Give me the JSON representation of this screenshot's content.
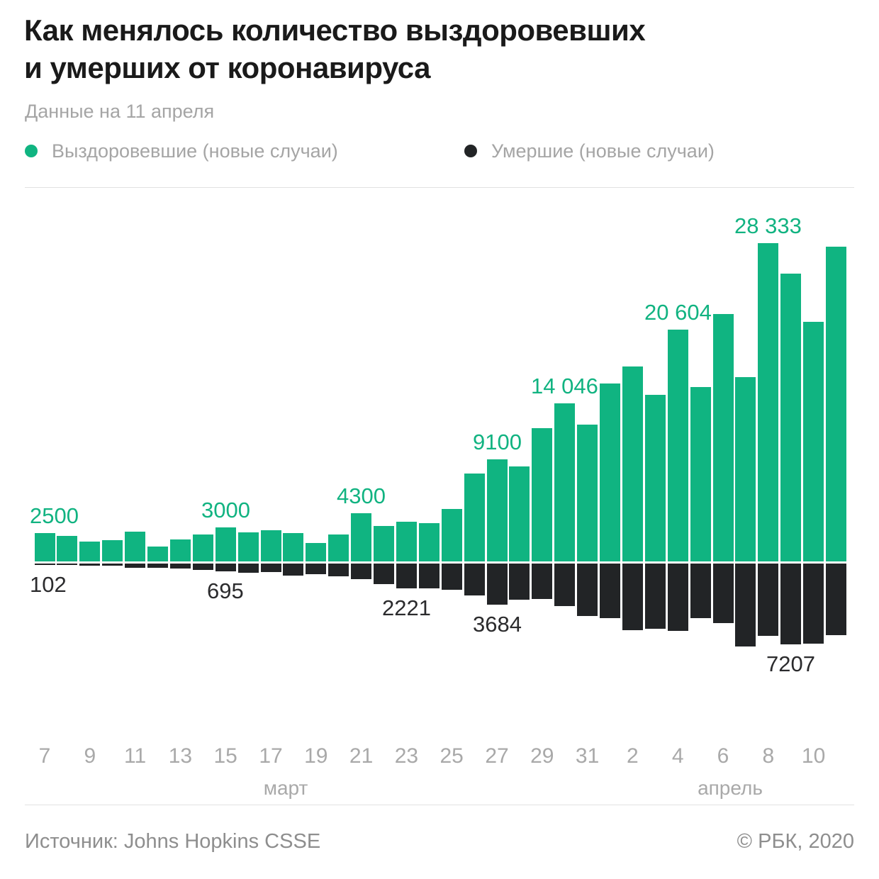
{
  "header": {
    "title_line1": "Как менялось количество выздоровевших",
    "title_line2": "и умерших от коронавируса",
    "subtitle": "Данные на 11 апреля"
  },
  "footer": {
    "source": "Источник: Johns Hopkins CSSE",
    "copyright": "© РБК, 2020"
  },
  "chart_data": {
    "type": "bar",
    "title": "Как менялось количество выздоровевших и умерших от коронавируса",
    "categories": [
      "7 марта",
      "8 марта",
      "9 марта",
      "10 марта",
      "11 марта",
      "12 марта",
      "13 марта",
      "14 марта",
      "15 марта",
      "16 марта",
      "17 марта",
      "18 марта",
      "19 марта",
      "20 марта",
      "21 марта",
      "22 марта",
      "23 марта",
      "24 марта",
      "25 марта",
      "26 марта",
      "27 марта",
      "28 марта",
      "29 марта",
      "30 марта",
      "31 марта",
      "1 апреля",
      "2 апреля",
      "3 апреля",
      "4 апреля",
      "5 апреля",
      "6 апреля",
      "7 апреля",
      "8 апреля",
      "9 апреля",
      "10 апреля",
      "11 апреля"
    ],
    "tick_labels": [
      "7",
      "",
      "9",
      "",
      "11",
      "",
      "13",
      "",
      "15",
      "",
      "17",
      "",
      "19",
      "",
      "21",
      "",
      "23",
      "",
      "25",
      "",
      "27",
      "",
      "29",
      "",
      "31",
      "",
      "2",
      "",
      "4",
      "",
      "6",
      "",
      "8",
      "",
      "10",
      ""
    ],
    "month_labels": [
      "март",
      "апрель"
    ],
    "series": [
      {
        "name": "Выздоровевшие (новые случаи)",
        "color": "#10b481",
        "values": [
          2500,
          2250,
          1750,
          1900,
          2650,
          1300,
          1950,
          2400,
          3000,
          2600,
          2800,
          2500,
          1650,
          2400,
          4300,
          3150,
          3550,
          3400,
          4700,
          7800,
          9100,
          8450,
          11850,
          14046,
          12200,
          15850,
          17350,
          14850,
          20604,
          15550,
          22000,
          16400,
          28333,
          25600,
          21300,
          28000
        ]
      },
      {
        "name": "Умершие (новые случаи)",
        "color": "#222426",
        "values": [
          102,
          100,
          160,
          200,
          370,
          370,
          420,
          580,
          695,
          840,
          760,
          1050,
          950,
          1150,
          1400,
          1830,
          2221,
          2200,
          2310,
          2840,
          3684,
          3200,
          3150,
          3800,
          4700,
          4870,
          5960,
          5815,
          5985,
          4870,
          5330,
          7380,
          6450,
          7207,
          7150,
          6350
        ]
      }
    ],
    "annotations": {
      "recovered": [
        {
          "index": 0,
          "text": "2500"
        },
        {
          "index": 8,
          "text": "3000"
        },
        {
          "index": 14,
          "text": "4300"
        },
        {
          "index": 20,
          "text": "9100"
        },
        {
          "index": 23,
          "text": "14 046"
        },
        {
          "index": 28,
          "text": "20 604"
        },
        {
          "index": 32,
          "text": "28 333"
        }
      ],
      "deaths": [
        {
          "index": 0,
          "text": "102"
        },
        {
          "index": 8,
          "text": "695"
        },
        {
          "index": 16,
          "text": "2221"
        },
        {
          "index": 20,
          "text": "3684"
        },
        {
          "index": 33,
          "text": "7207"
        }
      ]
    },
    "ylim_recovered": [
      0,
      28333
    ],
    "ylim_deaths": [
      0,
      7380
    ],
    "grid": false,
    "legend_position": "top"
  }
}
